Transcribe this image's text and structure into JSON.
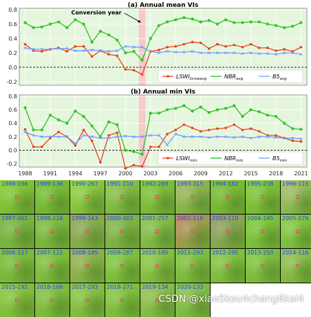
{
  "chart_data": [
    {
      "type": "line",
      "title": "(a) Annual mean VIs",
      "annotation": "Conversion year",
      "x": [
        1988,
        1989,
        1990,
        1991,
        1992,
        1993,
        1994,
        1995,
        1996,
        1997,
        1998,
        1999,
        2000,
        2001,
        2002,
        2003,
        2004,
        2005,
        2006,
        2007,
        2008,
        2009,
        2010,
        2011,
        2012,
        2013,
        2014,
        2015,
        2016,
        2017,
        2018,
        2019,
        2020,
        2021
      ],
      "xticks": [
        1988,
        1991,
        1994,
        1997,
        2000,
        2003,
        2006,
        2009,
        2012,
        2015,
        2018,
        2021
      ],
      "ylim": [
        -0.2,
        0.8
      ],
      "yticks": [
        -0.2,
        0.0,
        0.2,
        0.4,
        0.6,
        0.8
      ],
      "highlight_year": 2002,
      "grid": true,
      "legend_placement": "bottom-right",
      "series": [
        {
          "name": "LSWI",
          "sub": "Growavg",
          "color": "#e8401c",
          "marker": "circle",
          "values": [
            0.32,
            0.23,
            0.22,
            0.25,
            0.27,
            0.22,
            0.29,
            0.29,
            0.15,
            0.23,
            0.18,
            0.16,
            -0.03,
            -0.04,
            -0.1,
            0.22,
            0.24,
            0.28,
            0.29,
            0.32,
            0.35,
            0.34,
            0.26,
            0.32,
            0.29,
            0.31,
            0.28,
            0.32,
            0.27,
            0.27,
            0.23,
            0.25,
            0.22,
            0.28
          ]
        },
        {
          "name": "NBR",
          "sub": "avg",
          "color": "#27c21a",
          "marker": "star",
          "values": [
            0.62,
            0.55,
            0.56,
            0.6,
            0.63,
            0.55,
            0.66,
            0.6,
            0.35,
            0.5,
            0.45,
            0.38,
            0.2,
            0.22,
            0.1,
            0.4,
            0.58,
            0.63,
            0.66,
            0.69,
            0.67,
            0.63,
            0.65,
            0.6,
            0.66,
            0.62,
            0.62,
            0.63,
            0.63,
            0.6,
            0.58,
            0.55,
            0.57,
            0.62
          ]
        },
        {
          "name": "B5",
          "sub": "avg",
          "color": "#6f9bff",
          "marker": "x",
          "values": [
            0.27,
            0.25,
            0.25,
            0.25,
            0.26,
            0.26,
            0.23,
            0.23,
            0.24,
            0.23,
            0.22,
            0.23,
            0.29,
            0.28,
            0.28,
            0.22,
            0.2,
            0.22,
            0.21,
            0.21,
            0.22,
            0.2,
            0.2,
            0.2,
            0.2,
            0.2,
            0.19,
            0.2,
            0.19,
            0.19,
            0.18,
            0.2,
            0.2,
            0.18
          ]
        }
      ]
    },
    {
      "type": "line",
      "title": "(b) Annual min VIs",
      "x": [
        1988,
        1989,
        1990,
        1991,
        1992,
        1993,
        1994,
        1995,
        1996,
        1997,
        1998,
        1999,
        2000,
        2001,
        2002,
        2003,
        2004,
        2005,
        2006,
        2007,
        2008,
        2009,
        2010,
        2011,
        2012,
        2013,
        2014,
        2015,
        2016,
        2017,
        2018,
        2019,
        2020,
        2021
      ],
      "xticks": [
        1988,
        1991,
        1994,
        1997,
        2000,
        2003,
        2006,
        2009,
        2012,
        2015,
        2018,
        2021
      ],
      "ylim": [
        -0.2,
        0.8
      ],
      "yticks": [
        -0.2,
        0.0,
        0.2,
        0.4,
        0.6,
        0.8
      ],
      "highlight_year": 2002,
      "grid": true,
      "legend_placement": "bottom-right",
      "series": [
        {
          "name": "LSWI",
          "sub": "min",
          "color": "#e8401c",
          "marker": "circle",
          "values": [
            0.31,
            0.05,
            0.05,
            0.18,
            0.27,
            0.2,
            0.07,
            0.3,
            0.14,
            -0.18,
            0.22,
            0.26,
            -0.27,
            -0.22,
            -0.24,
            0.05,
            0.05,
            0.24,
            0.3,
            0.38,
            0.33,
            0.28,
            0.3,
            0.32,
            0.33,
            0.38,
            0.3,
            0.32,
            0.28,
            0.22,
            0.22,
            0.18,
            0.14,
            0.13
          ]
        },
        {
          "name": "NBR",
          "sub": "min",
          "color": "#27c21a",
          "marker": "star",
          "values": [
            0.63,
            0.3,
            0.3,
            0.52,
            0.45,
            0.4,
            0.58,
            0.5,
            0.36,
            0.2,
            0.42,
            0.38,
            0.0,
            -0.02,
            -0.06,
            0.55,
            0.55,
            0.6,
            0.62,
            0.66,
            0.58,
            0.64,
            0.56,
            0.6,
            0.62,
            0.66,
            0.5,
            0.6,
            0.57,
            0.52,
            0.5,
            0.4,
            0.32,
            0.31
          ]
        },
        {
          "name": "B5",
          "sub": "min",
          "color": "#6f9bff",
          "marker": "x",
          "values": [
            0.27,
            0.22,
            0.2,
            0.2,
            0.2,
            0.2,
            0.1,
            0.22,
            0.2,
            0.18,
            0.18,
            0.2,
            0.21,
            0.2,
            0.2,
            0.22,
            0.22,
            0.08,
            0.24,
            0.2,
            0.2,
            0.2,
            0.19,
            0.2,
            0.2,
            0.19,
            0.2,
            0.18,
            0.2,
            0.2,
            0.19,
            0.18,
            0.18,
            0.17
          ]
        }
      ]
    }
  ],
  "thumbnails": [
    {
      "label": "1988-196",
      "tone": "#8fcf3e"
    },
    {
      "label": "1989-136",
      "tone": "#7ec43a"
    },
    {
      "label": "1990-267",
      "tone": "#9bd84a"
    },
    {
      "label": "1991-110",
      "tone": "#93c655"
    },
    {
      "label": "1992-289",
      "tone": "#88c842"
    },
    {
      "label": "1993-315",
      "tone": "#a7b86a"
    },
    {
      "label": "1994-182",
      "tone": "#7fc23b"
    },
    {
      "label": "1995-238",
      "tone": "#86ce3f"
    },
    {
      "label": "1996-115",
      "tone": "#b0c07a"
    },
    {
      "label": "1997-261",
      "tone": "#7fb84e"
    },
    {
      "label": "1998-216",
      "tone": "#86c04a"
    },
    {
      "label": "1999-243",
      "tone": "#9aa868"
    },
    {
      "label": "2000-303",
      "tone": "#8cb85b"
    },
    {
      "label": "2001-257",
      "tone": "#92c45a"
    },
    {
      "label": "2002-116",
      "tone": "#c8866a"
    },
    {
      "label": "2003-110",
      "tone": "#a09c74"
    },
    {
      "label": "2004-165",
      "tone": "#86cf42"
    },
    {
      "label": "2005-276",
      "tone": "#8fd14c"
    },
    {
      "label": "2006-127",
      "tone": "#84c246"
    },
    {
      "label": "2007-122",
      "tone": "#8aca46"
    },
    {
      "label": "2008-185",
      "tone": "#a4b262"
    },
    {
      "label": "2009-287",
      "tone": "#8ccf48"
    },
    {
      "label": "2010-185",
      "tone": "#97d04e"
    },
    {
      "label": "2011-293",
      "tone": "#8ac84c"
    },
    {
      "label": "2012-295",
      "tone": "#90cd4c"
    },
    {
      "label": "2013-250",
      "tone": "#8ccc4a"
    },
    {
      "label": "2014-116",
      "tone": "#9dc45e"
    },
    {
      "label": "2015-192",
      "tone": "#94cd48"
    },
    {
      "label": "2016-106",
      "tone": "#8dc84b"
    },
    {
      "label": "2017-293",
      "tone": "#96cb52"
    },
    {
      "label": "2018-271",
      "tone": "#8fce48"
    },
    {
      "label": "2019-134",
      "tone": "#9ec85a"
    },
    {
      "label": "2020-133",
      "tone": "#93c958"
    }
  ],
  "watermark": "CSDN @xiao5kou4chang6kai4"
}
